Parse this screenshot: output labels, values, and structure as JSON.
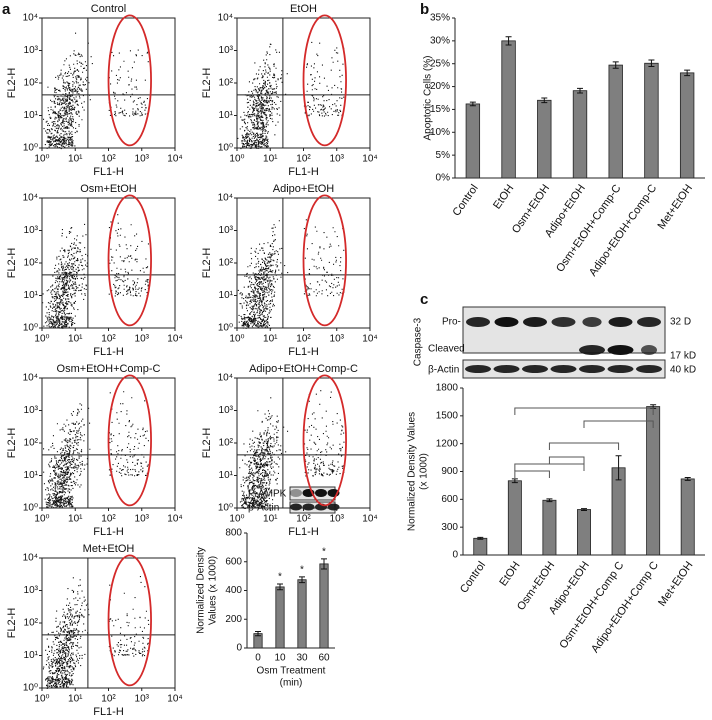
{
  "panel_labels": [
    "a",
    "b",
    "c"
  ],
  "blots": [
    {
      "protein": "Caspase-3",
      "rows": [
        "Pro-",
        "Cleaved"
      ],
      "loading": "β-Actin",
      "sizes": [
        "32 D",
        "17 kD",
        "40 kD"
      ]
    },
    {
      "rows": [
        "P-AMPK",
        "β-Actin"
      ]
    }
  ],
  "chart_data": [
    {
      "type": "flow",
      "title": "Control",
      "xlabel": "FL1-H",
      "ylabel": "FL2-H",
      "log_x": true,
      "log_y": true,
      "xlim": [
        1,
        10000
      ],
      "ylim": [
        1,
        10000
      ],
      "xticks": [
        {
          "value": 1,
          "label": "10⁰"
        },
        {
          "value": 10,
          "label": "10¹"
        },
        {
          "value": 100,
          "label": "10²"
        },
        {
          "value": 1000,
          "label": "10³"
        },
        {
          "value": 10000,
          "label": "10⁴"
        }
      ],
      "yticks": [
        {
          "value": 1,
          "label": "10⁰"
        },
        {
          "value": 10,
          "label": "10¹"
        },
        {
          "value": 100,
          "label": "10²"
        },
        {
          "value": 1000,
          "label": "10³"
        },
        {
          "value": 10000,
          "label": "10⁴"
        }
      ],
      "gate_x": 24,
      "gate_y": 43,
      "gate_color": "#d42a2a"
    },
    {
      "type": "flow",
      "title": "EtOH",
      "xlabel": "FL1-H",
      "ylabel": "FL2-H",
      "log_x": true,
      "log_y": true,
      "xlim": [
        1,
        10000
      ],
      "ylim": [
        1,
        10000
      ],
      "xticks": [
        {
          "value": 1,
          "label": "10⁰"
        },
        {
          "value": 10,
          "label": "10¹"
        },
        {
          "value": 100,
          "label": "10²"
        },
        {
          "value": 1000,
          "label": "10³"
        },
        {
          "value": 10000,
          "label": "10⁴"
        }
      ],
      "yticks": [
        {
          "value": 1,
          "label": "10⁰"
        },
        {
          "value": 10,
          "label": "10¹"
        },
        {
          "value": 100,
          "label": "10²"
        },
        {
          "value": 1000,
          "label": "10³"
        },
        {
          "value": 10000,
          "label": "10⁴"
        }
      ],
      "gate_x": 24,
      "gate_y": 43,
      "gate_color": "#d42a2a"
    },
    {
      "type": "flow",
      "title": "Osm+EtOH",
      "xlabel": "FL1-H",
      "ylabel": "FL2-H",
      "log_x": true,
      "log_y": true,
      "xlim": [
        1,
        10000
      ],
      "ylim": [
        1,
        10000
      ],
      "xticks": [
        {
          "value": 1,
          "label": "10⁰"
        },
        {
          "value": 10,
          "label": "10¹"
        },
        {
          "value": 100,
          "label": "10²"
        },
        {
          "value": 1000,
          "label": "10³"
        },
        {
          "value": 10000,
          "label": "10⁴"
        }
      ],
      "yticks": [
        {
          "value": 1,
          "label": "10⁰"
        },
        {
          "value": 10,
          "label": "10¹"
        },
        {
          "value": 100,
          "label": "10²"
        },
        {
          "value": 1000,
          "label": "10³"
        },
        {
          "value": 10000,
          "label": "10⁴"
        }
      ],
      "gate_x": 24,
      "gate_y": 43,
      "gate_color": "#d42a2a"
    },
    {
      "type": "flow",
      "title": "Adipo+EtOH",
      "xlabel": "FL1-H",
      "ylabel": "FL2-H",
      "log_x": true,
      "log_y": true,
      "xlim": [
        1,
        10000
      ],
      "ylim": [
        1,
        10000
      ],
      "xticks": [
        {
          "value": 1,
          "label": "10⁰"
        },
        {
          "value": 10,
          "label": "10¹"
        },
        {
          "value": 100,
          "label": "10²"
        },
        {
          "value": 1000,
          "label": "10³"
        },
        {
          "value": 10000,
          "label": "10⁴"
        }
      ],
      "yticks": [
        {
          "value": 1,
          "label": "10⁰"
        },
        {
          "value": 10,
          "label": "10¹"
        },
        {
          "value": 100,
          "label": "10²"
        },
        {
          "value": 1000,
          "label": "10³"
        },
        {
          "value": 10000,
          "label": "10⁴"
        }
      ],
      "gate_x": 24,
      "gate_y": 43,
      "gate_color": "#d42a2a"
    },
    {
      "type": "flow",
      "title": "Osm+EtOH+Comp-C",
      "xlabel": "FL1-H",
      "ylabel": "FL2-H",
      "log_x": true,
      "log_y": true,
      "xlim": [
        1,
        10000
      ],
      "ylim": [
        1,
        10000
      ],
      "xticks": [
        {
          "value": 1,
          "label": "10⁰"
        },
        {
          "value": 10,
          "label": "10¹"
        },
        {
          "value": 100,
          "label": "10²"
        },
        {
          "value": 1000,
          "label": "10³"
        },
        {
          "value": 10000,
          "label": "10⁴"
        }
      ],
      "yticks": [
        {
          "value": 1,
          "label": "10⁰"
        },
        {
          "value": 10,
          "label": "10¹"
        },
        {
          "value": 100,
          "label": "10²"
        },
        {
          "value": 1000,
          "label": "10³"
        },
        {
          "value": 10000,
          "label": "10⁴"
        }
      ],
      "gate_x": 24,
      "gate_y": 43,
      "gate_color": "#d42a2a"
    },
    {
      "type": "flow",
      "title": "Adipo+EtOH+Comp-C",
      "xlabel": "FL1-H",
      "ylabel": "FL2-H",
      "log_x": true,
      "log_y": true,
      "xlim": [
        1,
        10000
      ],
      "ylim": [
        1,
        10000
      ],
      "xticks": [
        {
          "value": 1,
          "label": "10⁰"
        },
        {
          "value": 10,
          "label": "10¹"
        },
        {
          "value": 100,
          "label": "10²"
        },
        {
          "value": 1000,
          "label": "10³"
        },
        {
          "value": 10000,
          "label": "10⁴"
        }
      ],
      "yticks": [
        {
          "value": 1,
          "label": "10⁰"
        },
        {
          "value": 10,
          "label": "10¹"
        },
        {
          "value": 100,
          "label": "10²"
        },
        {
          "value": 1000,
          "label": "10³"
        },
        {
          "value": 10000,
          "label": "10⁴"
        }
      ],
      "gate_x": 24,
      "gate_y": 43,
      "gate_color": "#d42a2a"
    },
    {
      "type": "flow",
      "title": "Met+EtOH",
      "xlabel": "FL1-H",
      "ylabel": "FL2-H",
      "log_x": true,
      "log_y": true,
      "xlim": [
        1,
        10000
      ],
      "ylim": [
        1,
        10000
      ],
      "xticks": [
        {
          "value": 1,
          "label": "10⁰"
        },
        {
          "value": 10,
          "label": "10¹"
        },
        {
          "value": 100,
          "label": "10²"
        },
        {
          "value": 1000,
          "label": "10³"
        },
        {
          "value": 10000,
          "label": "10⁴"
        }
      ],
      "yticks": [
        {
          "value": 1,
          "label": "10⁰"
        },
        {
          "value": 10,
          "label": "10¹"
        },
        {
          "value": 100,
          "label": "10²"
        },
        {
          "value": 1000,
          "label": "10³"
        },
        {
          "value": 10000,
          "label": "10⁴"
        }
      ],
      "gate_x": 24,
      "gate_y": 43,
      "gate_color": "#d42a2a"
    },
    {
      "type": "bar",
      "ylabel": [
        "Apoptotic Cells (%)"
      ],
      "categories": [
        "Control",
        "EtOH",
        "Osm+EtOH",
        "Adipo+EtOH",
        "Osm+EtOH+Comp-C",
        "Adipo+EtOH+Comp-C",
        "Met+EtOH"
      ],
      "values": [
        16.2,
        30,
        17,
        19.1,
        24.7,
        25.1,
        23
      ],
      "errors": [
        0.4,
        0.9,
        0.5,
        0.5,
        0.7,
        0.7,
        0.6
      ],
      "color": "#7f7f7f",
      "ylim": [
        0,
        35
      ],
      "yticks": [
        {
          "value": 0,
          "label": "0%"
        },
        {
          "value": 5,
          "label": "5%"
        },
        {
          "value": 10,
          "label": "10%"
        },
        {
          "value": 15,
          "label": "15%"
        },
        {
          "value": 20,
          "label": "20%"
        },
        {
          "value": 25,
          "label": "25%"
        },
        {
          "value": 30,
          "label": "30%"
        },
        {
          "value": 35,
          "label": "35%"
        }
      ]
    },
    {
      "type": "bar",
      "ylabel": [
        "Normalized Density Values",
        "(x 1000)"
      ],
      "categories": [
        "Control",
        "EtOH",
        "Osm+EtOH",
        "Adipo+EtOH",
        "Osm+EtOH+Comp C",
        "Adipo+EtOH+Comp C",
        "Met+EtOH"
      ],
      "values": [
        180,
        800,
        590,
        490,
        940,
        1600,
        820
      ],
      "errors": [
        10,
        20,
        15,
        10,
        130,
        20,
        15
      ],
      "color": "#7f7f7f",
      "ylim": [
        0,
        1800
      ],
      "yticks": [
        0,
        300,
        600,
        900,
        1200,
        1500,
        1800
      ]
    },
    {
      "type": "bar",
      "ylabel": [
        "Normalized Density",
        "Values (x 1000)"
      ],
      "xlabel": [
        "Osm Treatment",
        "(min)"
      ],
      "categories": [
        "0",
        "10",
        "30",
        "60"
      ],
      "values": [
        100,
        425,
        475,
        585
      ],
      "errors": [
        15,
        20,
        20,
        35
      ],
      "significance": [
        null,
        "*",
        "*",
        "*"
      ],
      "color": "#7f7f7f",
      "ylim": [
        0,
        800
      ],
      "yticks": [
        0,
        200,
        400,
        600,
        800
      ]
    }
  ]
}
